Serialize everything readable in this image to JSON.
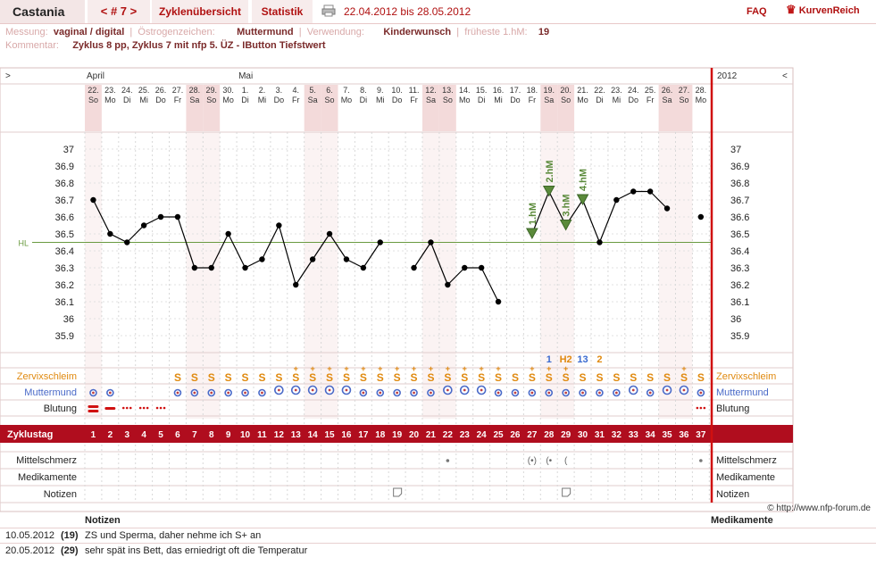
{
  "header": {
    "user": "Castania",
    "cycle_nav": "< # 7 >",
    "tabs": [
      "Zyklenübersicht",
      "Statistik"
    ],
    "date_range": "22.04.2012 bis 28.05.2012",
    "faq": "FAQ",
    "brand": "KurvenReich"
  },
  "meta": {
    "messung_label": "Messung:",
    "messung": "vaginal / digital",
    "oestrogen_label": "Östrogenzeichen:",
    "oestrogen": "Muttermund",
    "verwendung_label": "Verwendung:",
    "verwendung": "Kinderwunsch",
    "hm_label": "früheste 1.hM:",
    "hm": "19",
    "kommentar_label": "Kommentar:",
    "kommentar": "Zyklus 8 pp, Zyklus 7 mit nfp 5. ÜZ - IButton Tiefstwert"
  },
  "chart_data": {
    "type": "line",
    "title": "",
    "xlabel": "Zyklustag",
    "ylabel": "",
    "ylim": [
      35.8,
      37.05
    ],
    "yticks": [
      "37",
      "36.9",
      "36.8",
      "36.7",
      "36.6",
      "36.5",
      "36.4",
      "36.3",
      "36.2",
      "36.1",
      "36",
      "35.9"
    ],
    "hl_value": 36.45,
    "hl_label": "HL",
    "nav_left": ">",
    "nav_right": "<",
    "year": "2012",
    "months": [
      {
        "label": "April",
        "day": 1
      },
      {
        "label": "Mai",
        "day": 10
      }
    ],
    "dates": [
      "22.",
      "23.",
      "24.",
      "25.",
      "26.",
      "27.",
      "28.",
      "29.",
      "30.",
      "1.",
      "2.",
      "3.",
      "4.",
      "5.",
      "6.",
      "7.",
      "8.",
      "9.",
      "10.",
      "11.",
      "12.",
      "13.",
      "14.",
      "15.",
      "16.",
      "17.",
      "18.",
      "19.",
      "20.",
      "21.",
      "22.",
      "23.",
      "24.",
      "25.",
      "26.",
      "27.",
      "28."
    ],
    "weekdays": [
      "So",
      "Mo",
      "Di",
      "Mi",
      "Do",
      "Fr",
      "Sa",
      "So",
      "Mo",
      "Di",
      "Mi",
      "Do",
      "Fr",
      "Sa",
      "So",
      "Mo",
      "Di",
      "Mi",
      "Do",
      "Fr",
      "Sa",
      "So",
      "Mo",
      "Di",
      "Mi",
      "Do",
      "Fr",
      "Sa",
      "So",
      "Mo",
      "Di",
      "Mi",
      "Do",
      "Fr",
      "Sa",
      "So",
      "Mo"
    ],
    "cycle_days": [
      "1",
      "2",
      "3",
      "4",
      "5",
      "6",
      "7",
      "8",
      "9",
      "10",
      "11",
      "12",
      "13",
      "14",
      "15",
      "16",
      "17",
      "18",
      "19",
      "20",
      "21",
      "22",
      "23",
      "24",
      "25",
      "26",
      "27",
      "28",
      "29",
      "30",
      "31",
      "32",
      "33",
      "34",
      "35",
      "36",
      "37"
    ],
    "temps": [
      36.7,
      36.5,
      36.45,
      36.55,
      36.6,
      36.6,
      36.3,
      36.3,
      36.5,
      36.3,
      36.35,
      36.55,
      36.2,
      36.35,
      36.5,
      36.35,
      36.3,
      36.45,
      null,
      36.3,
      36.45,
      36.2,
      36.3,
      36.3,
      36.1,
      null,
      36.5,
      36.75,
      36.55,
      36.7,
      36.45,
      36.7,
      36.75,
      36.75,
      36.65,
      null,
      36.6
    ],
    "higher_measurements": [
      {
        "day": 27,
        "label": "1.hM"
      },
      {
        "day": 28,
        "label": "2.hM"
      },
      {
        "day": 29,
        "label": "3.hM"
      },
      {
        "day": 30,
        "label": "4.hM"
      }
    ],
    "cervix_counts": [
      {
        "day": 28,
        "text": "1"
      },
      {
        "day": 29,
        "text": "H2"
      },
      {
        "day": 30,
        "text": "13"
      },
      {
        "day": 31,
        "text": "2"
      }
    ],
    "rows": {
      "zervix": "Zervixschleim",
      "muttermund": "Muttermund",
      "blutung": "Blutung",
      "zyklustag": "Zyklustag",
      "mittelschmerz": "Mittelschmerz",
      "medikamente": "Medikamente",
      "notizen": "Notizen"
    },
    "mucus_symbol": "S",
    "mucus_days": [
      6,
      7,
      8,
      9,
      10,
      11,
      12,
      13,
      14,
      15,
      16,
      17,
      18,
      19,
      20,
      21,
      22,
      23,
      24,
      25,
      26,
      27,
      28,
      29,
      30,
      31,
      32,
      33,
      34,
      35,
      36,
      37
    ],
    "mucus_plus_days": [
      13,
      14,
      15,
      16,
      17,
      18,
      19,
      20,
      21,
      22,
      23,
      24,
      25,
      27,
      28,
      29,
      36
    ],
    "bleeding": [
      {
        "day": 1,
        "level": "strong"
      },
      {
        "day": 2,
        "level": "medium"
      },
      {
        "day": 3,
        "level": "light"
      },
      {
        "day": 4,
        "level": "light"
      },
      {
        "day": 5,
        "level": "light"
      },
      {
        "day": 37,
        "level": "light"
      }
    ],
    "mittelschmerz_days": [
      22,
      27,
      28,
      29,
      37
    ],
    "note_days": [
      19,
      29
    ],
    "copyright": "© http://www.nfp-forum.de"
  },
  "notes": {
    "header_notes": "Notizen",
    "header_meds": "Medikamente",
    "entries": [
      {
        "date": "10.05.2012",
        "day": "(19)",
        "text": "ZS und Sperma, daher nehme ich S+ an"
      },
      {
        "date": "20.05.2012",
        "day": "(29)",
        "text": "sehr spät ins Bett, das erniedrigt oft die Temperatur"
      }
    ]
  }
}
